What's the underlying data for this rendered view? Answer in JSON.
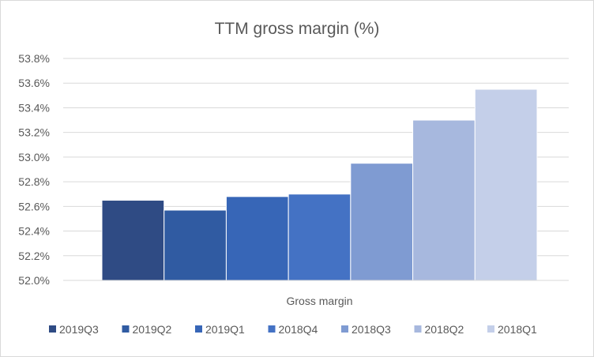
{
  "chart_data": {
    "type": "bar",
    "title": "TTM gross margin (%)",
    "categories": [
      "Gross margin"
    ],
    "series": [
      {
        "name": "2019Q3",
        "values": [
          52.65
        ],
        "color": "#2f4b84"
      },
      {
        "name": "2019Q2",
        "values": [
          52.57
        ],
        "color": "#305ba2"
      },
      {
        "name": "2019Q1",
        "values": [
          52.68
        ],
        "color": "#3766b7"
      },
      {
        "name": "2018Q4",
        "values": [
          52.7
        ],
        "color": "#4472c4"
      },
      {
        "name": "2018Q3",
        "values": [
          52.95
        ],
        "color": "#7f9bd2"
      },
      {
        "name": "2018Q2",
        "values": [
          53.3
        ],
        "color": "#a7b8de"
      },
      {
        "name": "2018Q1",
        "values": [
          53.55
        ],
        "color": "#c4cfe9"
      }
    ],
    "ylim": [
      52.0,
      53.8
    ],
    "y_ticks": [
      "52.0%",
      "52.2%",
      "52.4%",
      "52.6%",
      "52.8%",
      "53.0%",
      "53.2%",
      "53.4%",
      "53.6%",
      "53.8%"
    ],
    "y_tick_values": [
      52.0,
      52.2,
      52.4,
      52.6,
      52.8,
      53.0,
      53.2,
      53.4,
      53.6,
      53.8
    ],
    "xlabel": "",
    "ylabel": "",
    "grid": true,
    "legend_position": "bottom"
  }
}
